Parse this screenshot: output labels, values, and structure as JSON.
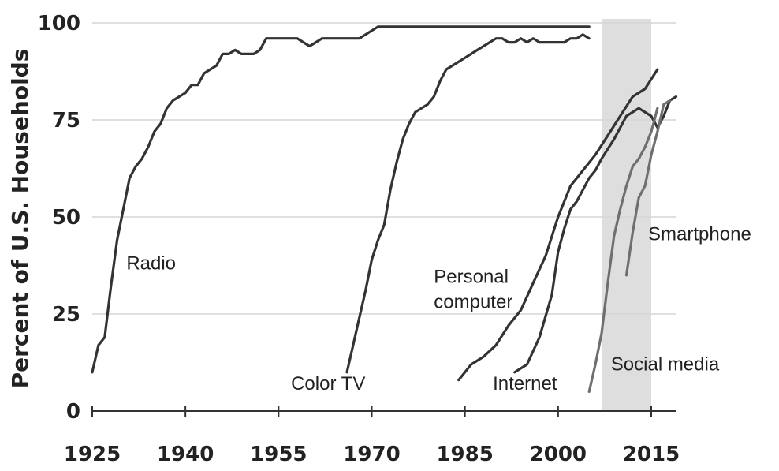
{
  "chart_data": {
    "type": "line",
    "title": "",
    "xlabel": "",
    "ylabel": "Percent of U.S. Households",
    "xlim": [
      1925,
      2020
    ],
    "ylim": [
      0,
      100
    ],
    "xticks": [
      1925,
      1940,
      1955,
      1970,
      1985,
      2000,
      2015
    ],
    "yticks": [
      0,
      25,
      50,
      75,
      100
    ],
    "grid": "horizontal",
    "shaded_region": {
      "x": [
        2007,
        2015
      ],
      "color": "#dedede"
    },
    "colors": {
      "dark_series": "#333333",
      "gray_series": "#6f6f6f",
      "grid": "#d6d6d6",
      "axis": "#333333"
    },
    "series": [
      {
        "name": "Radio",
        "color": "dark",
        "x": [
          1925,
          1926,
          1927,
          1928,
          1929,
          1930,
          1931,
          1932,
          1933,
          1934,
          1935,
          1936,
          1937,
          1938,
          1939,
          1940,
          1941,
          1942,
          1943,
          1944,
          1945,
          1946,
          1947,
          1948,
          1949,
          1950,
          1951,
          1952,
          1953,
          1954,
          1955,
          1956,
          1957,
          1958,
          1959,
          1960,
          1961,
          1962,
          1963,
          1964,
          1965,
          1966,
          1967,
          1968,
          1969,
          1970,
          1971,
          2005
        ],
        "values": [
          10,
          17,
          19,
          32,
          44,
          52,
          60,
          63,
          65,
          68,
          72,
          74,
          78,
          80,
          81,
          82,
          84,
          84,
          87,
          88,
          89,
          92,
          92,
          93,
          92,
          92,
          92,
          93,
          96,
          96,
          96,
          96,
          96,
          96,
          95,
          94,
          95,
          96,
          96,
          96,
          96,
          96,
          96,
          96,
          97,
          98,
          99,
          99
        ]
      },
      {
        "name": "Color TV",
        "color": "dark",
        "x": [
          1966,
          1967,
          1968,
          1969,
          1970,
          1971,
          1972,
          1973,
          1974,
          1975,
          1976,
          1977,
          1978,
          1979,
          1980,
          1981,
          1982,
          1983,
          1984,
          1985,
          1986,
          1987,
          1988,
          1989,
          1990,
          1991,
          1992,
          1993,
          1994,
          1995,
          1996,
          1997,
          1998,
          1999,
          2000,
          2001,
          2002,
          2003,
          2004,
          2005
        ],
        "values": [
          10,
          17,
          24,
          31,
          39,
          44,
          48,
          57,
          64,
          70,
          74,
          77,
          78,
          79,
          81,
          85,
          88,
          89,
          90,
          91,
          92,
          93,
          94,
          95,
          96,
          96,
          95,
          95,
          96,
          95,
          96,
          95,
          95,
          95,
          95,
          95,
          96,
          96,
          97,
          96
        ]
      },
      {
        "name": "Personal computer",
        "color": "dark",
        "x": [
          1984,
          1986,
          1988,
          1990,
          1992,
          1994,
          1996,
          1998,
          2000,
          2002,
          2004,
          2006,
          2008,
          2010,
          2012,
          2014,
          2016
        ],
        "values": [
          8,
          12,
          14,
          17,
          22,
          26,
          33,
          40,
          50,
          58,
          62,
          66,
          71,
          76,
          81,
          83,
          88
        ]
      },
      {
        "name": "Internet",
        "color": "dark",
        "x": [
          1993,
          1995,
          1997,
          1999,
          2000,
          2001,
          2002,
          2003,
          2004,
          2005,
          2006,
          2007,
          2009,
          2011,
          2013,
          2015,
          2016,
          2017,
          2018,
          2019
        ],
        "values": [
          10,
          12,
          19,
          30,
          41,
          47,
          52,
          54,
          57,
          60,
          62,
          65,
          70,
          76,
          78,
          76,
          73,
          76,
          80,
          81
        ]
      },
      {
        "name": "Social media",
        "color": "gray",
        "x": [
          2005,
          2006,
          2007,
          2008,
          2009,
          2010,
          2011,
          2012,
          2013,
          2014,
          2015,
          2016
        ],
        "values": [
          5,
          12,
          20,
          33,
          45,
          52,
          58,
          63,
          65,
          68,
          72,
          78
        ]
      },
      {
        "name": "Smartphone",
        "color": "gray",
        "x": [
          2011,
          2012,
          2013,
          2014,
          2015,
          2016,
          2017,
          2018
        ],
        "values": [
          35,
          46,
          55,
          58,
          66,
          72,
          79,
          80
        ]
      }
    ],
    "series_labels": [
      {
        "name": "Radio",
        "text": "Radio",
        "x": 1930.5,
        "y": 36.5
      },
      {
        "name": "Personal computer",
        "text": "Personal",
        "x": 1980,
        "y": 33
      },
      {
        "name": "Personal computer",
        "text": "computer",
        "x": 1980,
        "y": 26.5
      },
      {
        "name": "Color TV",
        "text": "Color TV",
        "x": 1957,
        "y": 5.5
      },
      {
        "name": "Internet",
        "text": "Internet",
        "x": 1989.5,
        "y": 5.5
      },
      {
        "name": "Social media",
        "text": "Social media",
        "x": 2008.5,
        "y": 10.5
      },
      {
        "name": "Smartphone",
        "text": "Smartphone",
        "x": 2014.5,
        "y": 44
      }
    ]
  }
}
